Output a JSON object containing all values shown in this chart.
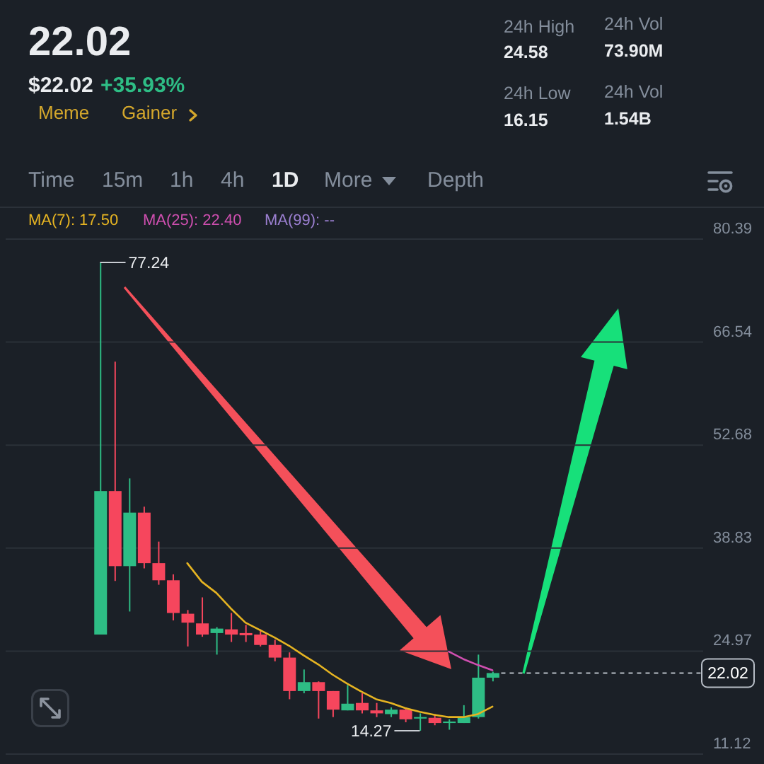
{
  "chart_data": {
    "type": "candlestick",
    "title": "22.02",
    "subtitle": "$22.02",
    "annotations": [
      "+35.93%",
      "Meme",
      "Gainer",
      "24h High",
      "24.58",
      "24h Vol",
      "73.90M",
      "24h Low",
      "16.15",
      "24h Vol",
      "1.54B",
      "Time",
      "15m",
      "1h",
      "4h",
      "1D",
      "More",
      "Depth",
      "77.24",
      "14.27"
    ],
    "categories": [
      null,
      null,
      null,
      null,
      null,
      null,
      null,
      null,
      null,
      null,
      null,
      null,
      null,
      null,
      null,
      null,
      null,
      null,
      null,
      null,
      null,
      null,
      null,
      null,
      null,
      null,
      null,
      null,
      null,
      null,
      null,
      null,
      null,
      null,
      null,
      null,
      null,
      null,
      null,
      null,
      null,
      null,
      null,
      null,
      null,
      null,
      null,
      null
    ],
    "ohlc": [
      null,
      null,
      null,
      null,
      null,
      null,
      [
        27.2,
        77.24,
        27.2,
        46.5
      ],
      [
        46.5,
        63.9,
        34.4,
        36.4
      ],
      [
        36.4,
        48.2,
        30.3,
        43.6
      ],
      [
        43.6,
        44.4,
        36.1,
        36.8
      ],
      [
        36.8,
        39.7,
        33.9,
        34.5
      ],
      [
        34.5,
        35.3,
        29.1,
        30.1
      ],
      [
        30.0,
        30.5,
        25.6,
        28.8
      ],
      [
        28.7,
        32.2,
        26.9,
        27.2
      ],
      [
        27.4,
        28.2,
        24.5,
        28.0
      ],
      [
        27.9,
        30.1,
        26.2,
        27.2
      ],
      [
        27.4,
        28.5,
        26.2,
        27.1
      ],
      [
        27.2,
        27.9,
        25.6,
        25.8
      ],
      [
        25.8,
        26.5,
        23.6,
        24.1
      ],
      [
        24.1,
        24.8,
        18.5,
        19.6
      ],
      [
        19.6,
        22.5,
        19.3,
        20.8
      ],
      [
        20.8,
        20.9,
        15.9,
        19.6
      ],
      [
        19.6,
        19.6,
        16.1,
        17.1
      ],
      [
        17.0,
        20.4,
        17.0,
        17.9
      ],
      [
        18.0,
        19.3,
        16.6,
        17.0
      ],
      [
        17.0,
        18.0,
        16.1,
        16.6
      ],
      [
        16.5,
        17.4,
        16.1,
        17.1
      ],
      [
        17.1,
        17.4,
        15.4,
        15.8
      ],
      [
        15.9,
        16.6,
        14.27,
        16.1
      ],
      [
        16.0,
        16.5,
        15.0,
        15.3
      ],
      [
        15.3,
        15.8,
        14.4,
        15.5
      ],
      [
        15.3,
        17.7,
        15.3,
        16.1
      ],
      [
        16.1,
        24.5,
        15.9,
        21.4
      ],
      [
        21.4,
        22.2,
        20.9,
        22.02
      ],
      null,
      null,
      null,
      null,
      null,
      null,
      null,
      null,
      null,
      null,
      null,
      null,
      null,
      null
    ],
    "colors": [
      null,
      null,
      null,
      null,
      null,
      null,
      "#2ebd85",
      "#f6465d",
      "#2ebd85",
      "#f6465d",
      "#f6465d",
      "#f6465d",
      "#f6465d",
      "#f6465d",
      "#2ebd85",
      "#f6465d",
      "#f6465d",
      "#f6465d",
      "#f6465d",
      "#f6465d",
      "#2ebd85",
      "#f6465d",
      "#f6465d",
      "#2ebd85",
      "#f6465d",
      "#f6465d",
      "#2ebd85",
      "#f6465d",
      "#2ebd85",
      "#f6465d",
      "#2ebd85",
      "#2ebd85",
      "#2ebd85",
      "#2ebd85",
      null,
      null,
      null,
      null,
      null,
      null,
      null,
      null,
      null,
      null,
      null,
      null,
      null,
      null
    ],
    "series": [
      {
        "name": "MA(7): 17.50",
        "type": "line",
        "color": "#e6b422",
        "values": [
          null,
          null,
          null,
          null,
          null,
          null,
          null,
          null,
          null,
          null,
          null,
          null,
          36.8,
          34.3,
          32.8,
          30.7,
          28.8,
          27.8,
          26.8,
          25.7,
          24.4,
          23.2,
          21.8,
          20.6,
          19.5,
          18.5,
          18.0,
          17.3,
          16.8,
          16.4,
          16.1,
          16.1,
          16.5,
          17.5,
          null,
          null,
          null,
          null,
          null,
          null,
          null,
          null,
          null,
          null,
          null,
          null,
          null,
          null
        ]
      },
      {
        "name": "MA(25): 22.40",
        "type": "line",
        "color": "#cf4fb0",
        "values": [
          null,
          null,
          null,
          null,
          null,
          null,
          null,
          null,
          null,
          null,
          null,
          null,
          null,
          null,
          null,
          null,
          null,
          null,
          null,
          null,
          null,
          null,
          null,
          null,
          null,
          null,
          null,
          null,
          null,
          null,
          24.9,
          23.9,
          23.1,
          22.4,
          null,
          null,
          null,
          null,
          null,
          null,
          null,
          null,
          null,
          null,
          null,
          null,
          null,
          null
        ]
      },
      {
        "name": "MA(99): --",
        "type": "line",
        "color": "#9b7fd0",
        "values": [
          null,
          null,
          null,
          null,
          null,
          null,
          null,
          null,
          null,
          null,
          null,
          null,
          null,
          null,
          null,
          null,
          null,
          null,
          null,
          null,
          null,
          null,
          null,
          null,
          null,
          null,
          null,
          null,
          null,
          null,
          null,
          null,
          null,
          null,
          null,
          null,
          null,
          null,
          null,
          null,
          null,
          null,
          null,
          null,
          null,
          null,
          null,
          null
        ]
      }
    ],
    "ylim": [
      11.12,
      80.39
    ],
    "yticks": [
      11.12,
      24.97,
      38.83,
      52.68,
      66.54,
      80.39
    ],
    "grid": "y",
    "legend": "top left",
    "tick_labels": "y",
    "ref_lines": [
      {
        "axis": "y",
        "value": 22.02,
        "label": "22.02",
        "line_style": "dashed",
        "color": "#b7bdc6"
      }
    ]
  }
}
